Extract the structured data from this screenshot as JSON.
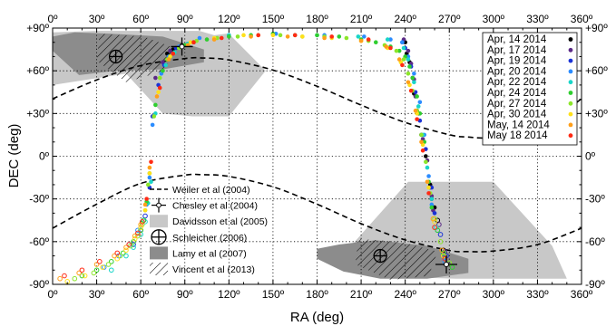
{
  "chart_data": {
    "type": "scatter",
    "title": "",
    "xlabel": "RA (deg)",
    "ylabel": "DEC (deg)",
    "xlim": [
      0,
      360
    ],
    "ylim": [
      -90,
      90
    ],
    "x_ticks": [
      0,
      30,
      60,
      90,
      120,
      150,
      180,
      210,
      240,
      270,
      300,
      330,
      360
    ],
    "y_ticks": [
      -90,
      -60,
      -30,
      0,
      30,
      60,
      90
    ],
    "x_tick_labels": [
      "0º",
      "30º",
      "60º",
      "90º",
      "120º",
      "150º",
      "180º",
      "210º",
      "240º",
      "270º",
      "300º",
      "330º",
      "360º"
    ],
    "y_tick_labels": [
      "-90º",
      "-60º",
      "-30º",
      "0º",
      "+30º",
      "+60º",
      "+90º"
    ],
    "grid": true,
    "date_legend_position": "top-right",
    "model_legend_position": "lower-left",
    "series": [
      {
        "name": "Apr, 14 2014",
        "color": "#000000",
        "x": [
          78,
          82,
          88,
          96,
          240,
          241,
          243,
          245,
          246,
          248,
          251,
          254,
          257,
          258,
          260,
          262,
          266
        ],
        "y": [
          72,
          75,
          78,
          80,
          80,
          72,
          66,
          55,
          44,
          32,
          15,
          0,
          -20,
          -30,
          -36,
          -45,
          -66
        ]
      },
      {
        "name": "Apr, 17 2014",
        "color": "#5b2a86",
        "x": [
          70,
          75,
          80,
          92,
          239,
          242,
          244,
          246,
          247,
          249,
          252,
          255,
          257,
          258,
          259,
          263,
          267
        ],
        "y": [
          55,
          66,
          74,
          79,
          82,
          74,
          65,
          54,
          42,
          30,
          12,
          -3,
          -22,
          -28,
          -38,
          -48,
          -67
        ]
      },
      {
        "name": "Apr, 19 2014",
        "color": "#1a33d6",
        "x": [
          55,
          60,
          63,
          66,
          68,
          72,
          76,
          84,
          238,
          240,
          244,
          247,
          250,
          254,
          258,
          260,
          264,
          268
        ],
        "y": [
          -62,
          -52,
          -42,
          -22,
          28,
          50,
          64,
          76,
          80,
          76,
          63,
          45,
          25,
          5,
          -22,
          -40,
          -55,
          -70
        ]
      },
      {
        "name": "Apr, 20 2014",
        "color": "#2b8cff",
        "x": [
          35,
          45,
          52,
          58,
          62,
          64,
          66,
          68,
          74,
          79,
          86,
          100,
          120,
          152,
          185,
          212,
          230,
          238,
          242,
          246,
          250,
          253,
          256,
          258,
          262,
          267
        ],
        "y": [
          -78,
          -70,
          -62,
          -52,
          -45,
          -34,
          -15,
          22,
          58,
          70,
          77,
          83,
          85,
          86,
          85,
          84,
          82,
          80,
          70,
          58,
          38,
          15,
          -14,
          -34,
          -52,
          -74
        ]
      },
      {
        "name": "Apr, 22 2014",
        "color": "#19d5c8",
        "x": [
          40,
          50,
          55,
          60,
          63,
          65,
          67,
          70,
          77,
          83,
          92,
          120,
          150,
          180,
          208,
          228,
          239,
          242,
          246,
          249,
          252,
          255,
          258,
          261,
          266
        ],
        "y": [
          -80,
          -70,
          -64,
          -55,
          -46,
          -33,
          -18,
          30,
          64,
          73,
          79,
          85,
          86,
          85,
          84,
          82,
          76,
          68,
          52,
          35,
          15,
          -8,
          -30,
          -50,
          -70
        ]
      },
      {
        "name": "Apr, 24 2014",
        "color": "#2fce2f",
        "x": [
          20,
          30,
          40,
          48,
          55,
          60,
          62,
          64,
          66,
          70,
          75,
          80,
          90,
          105,
          120,
          135,
          150,
          165,
          180,
          195,
          210,
          220,
          230,
          236,
          240,
          243,
          245,
          248,
          250,
          253,
          256,
          258,
          262,
          266,
          272
        ],
        "y": [
          -84,
          -80,
          -74,
          -68,
          -60,
          -52,
          -45,
          -32,
          -12,
          36,
          60,
          70,
          78,
          82,
          84,
          85,
          86,
          85,
          85,
          84,
          82,
          80,
          77,
          74,
          70,
          63,
          55,
          42,
          30,
          10,
          -18,
          -36,
          -52,
          -68,
          -78
        ]
      },
      {
        "name": "Apr, 27 2014",
        "color": "#8ce62a",
        "x": [
          15,
          28,
          38,
          46,
          53,
          58,
          61,
          63,
          65,
          69,
          73,
          78,
          86,
          98,
          112,
          126,
          140,
          155,
          170,
          185,
          200,
          215,
          226,
          234,
          239,
          242,
          245,
          248,
          251,
          254,
          257,
          260,
          264,
          270
        ],
        "y": [
          -86,
          -82,
          -76,
          -70,
          -63,
          -56,
          -48,
          -38,
          -20,
          28,
          55,
          68,
          76,
          81,
          83,
          84,
          85,
          85,
          84,
          84,
          83,
          81,
          78,
          74,
          68,
          58,
          46,
          32,
          15,
          -4,
          -26,
          -44,
          -60,
          -75
        ]
      },
      {
        "name": "Apr, 30 2014",
        "color": "#ffe01a",
        "x": [
          10,
          22,
          34,
          44,
          50,
          56,
          60,
          63,
          66,
          72,
          80,
          94,
          110,
          130,
          150,
          170,
          190,
          210,
          228,
          237,
          243,
          248,
          252,
          256,
          260,
          266
        ],
        "y": [
          -88,
          -84,
          -78,
          -72,
          -66,
          -58,
          -50,
          -38,
          -12,
          45,
          70,
          80,
          83,
          85,
          85,
          84,
          83,
          81,
          76,
          66,
          50,
          30,
          8,
          -22,
          -46,
          -70
        ]
      },
      {
        "name": "May, 14 2014",
        "color": "#ff9f1a",
        "x": [
          5,
          18,
          30,
          42,
          50,
          56,
          60,
          63,
          66,
          71,
          79,
          92,
          110,
          135,
          160,
          185,
          210,
          227,
          236,
          242,
          247,
          251,
          255,
          259,
          265
        ],
        "y": [
          -86,
          -82,
          -76,
          -70,
          -64,
          -56,
          -48,
          -34,
          -8,
          42,
          68,
          78,
          82,
          84,
          84,
          83,
          81,
          77,
          68,
          52,
          32,
          10,
          -18,
          -44,
          -66
        ]
      },
      {
        "name": "May 18 2014",
        "color": "#ff2a14",
        "x": [
          8,
          20,
          32,
          44,
          52,
          58,
          61,
          64,
          67,
          73,
          82,
          96,
          115,
          140,
          165,
          190,
          215,
          230,
          238,
          244,
          248,
          252,
          256,
          260,
          267
        ],
        "y": [
          -84,
          -80,
          -74,
          -68,
          -62,
          -54,
          -46,
          -30,
          -4,
          48,
          72,
          80,
          83,
          85,
          85,
          84,
          82,
          76,
          64,
          46,
          26,
          4,
          -26,
          -50,
          -72
        ]
      }
    ],
    "models": [
      {
        "name": "Weiler et al (2004)",
        "style": "dashed",
        "color": "#000000"
      },
      {
        "name": "Chesley et al (2004)",
        "style": "error-cross",
        "color": "#000000",
        "points": [
          {
            "ra": 88,
            "dec": 77
          },
          {
            "ra": 268,
            "dec": -76
          }
        ]
      },
      {
        "name": "Davidsson et al (2005)",
        "style": "light-gray-region",
        "color": "#c8c8c8"
      },
      {
        "name": "Schleicher (2006)",
        "style": "circle-cross",
        "color": "#000000",
        "points": [
          {
            "ra": 43,
            "dec": 70
          },
          {
            "ra": 223,
            "dec": -70
          }
        ]
      },
      {
        "name": "Lamy et al (2007)",
        "style": "dark-gray-region",
        "color": "#8c8c8c"
      },
      {
        "name": "Vincent et al (2013)",
        "style": "hatched-region",
        "color": "#000000"
      }
    ],
    "dashed_curves": [
      {
        "x": [
          0,
          30,
          60,
          90,
          102,
          120,
          150,
          180,
          210,
          240,
          270,
          282,
          300,
          330,
          360
        ],
        "y": [
          40.3,
          53.6,
          63.7,
          68.6,
          69,
          67.6,
          60.5,
          49.1,
          35.9,
          23.7,
          15.1,
          13.5,
          13.1,
          18.7,
          40.3
        ]
      },
      {
        "x": [
          0,
          30,
          60,
          90,
          102,
          120,
          150,
          180,
          210,
          240,
          270,
          282,
          300,
          330,
          360
        ],
        "y": [
          -50.6,
          -33.7,
          -19.1,
          -13.3,
          -13,
          -14.2,
          -21.5,
          -33.7,
          -47.4,
          -58.8,
          -66.2,
          -67,
          -66.6,
          -62.1,
          -50.6
        ]
      }
    ],
    "regions": [
      {
        "name": "Davidsson et al (2005)",
        "fill": "#c8c8c8",
        "ra": [
          0,
          30,
          60,
          62,
          100,
          110,
          118,
          120,
          145,
          120,
          95,
          75,
          50,
          0
        ],
        "dec": [
          87,
          88,
          88,
          88,
          88,
          85,
          86,
          86,
          60,
          28,
          28,
          30,
          58,
          50
        ]
      },
      {
        "name": "Davidsson et al (2005)",
        "fill": "#c8c8c8",
        "ra": [
          197,
          242,
          300,
          340,
          350,
          275,
          240,
          195
        ],
        "dec": [
          -70,
          -18,
          -18,
          -63,
          -86,
          -86,
          -85,
          -72
        ]
      },
      {
        "name": "Lamy et al (2007)",
        "fill": "#8c8c8c",
        "ra": [
          0,
          15,
          40,
          75,
          103,
          103,
          75,
          43,
          18,
          0
        ],
        "dec": [
          84,
          87,
          86,
          84,
          75,
          66,
          61,
          60,
          57,
          74
        ]
      },
      {
        "name": "Lamy et al (2007)",
        "fill": "#8c8c8c",
        "ra": [
          180,
          195,
          220,
          255,
          283,
          283,
          255,
          223,
          198,
          180
        ],
        "dec": [
          -65,
          -62,
          -59,
          -63,
          -72,
          -82,
          -86,
          -86,
          -81,
          -72
        ]
      },
      {
        "name": "Vincent et al (2013)",
        "fill": "hatch",
        "ra": [
          32,
          62,
          83,
          76,
          50,
          30
        ],
        "dec": [
          86,
          84,
          76,
          60,
          52,
          67
        ]
      },
      {
        "name": "Vincent et al (2013)",
        "fill": "hatch",
        "ra": [
          208,
          237,
          262,
          256,
          230,
          206
        ],
        "dec": [
          -58,
          -60,
          -67,
          -84,
          -87,
          -76
        ]
      }
    ]
  }
}
